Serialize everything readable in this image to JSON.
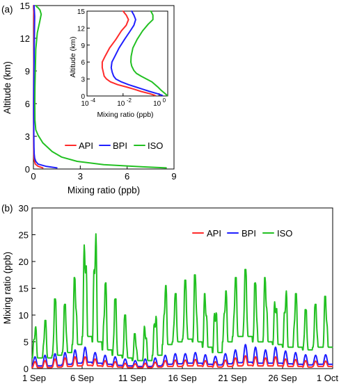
{
  "colors": {
    "API": "#ff2a2a",
    "BPI": "#1f1fff",
    "ISO": "#22c022"
  },
  "chart_data": [
    {
      "id": "profile",
      "panel_label": "(a)",
      "type": "line",
      "xlabel": "Mixing ratio (ppb)",
      "ylabel": "Altitude (km)",
      "xlim": [
        0,
        9
      ],
      "ylim": [
        0,
        15
      ],
      "xticks": [
        0,
        3,
        6,
        9
      ],
      "yticks": [
        0,
        3,
        6,
        9,
        12,
        15
      ],
      "legend": "bottom-right",
      "series": [
        {
          "name": "API",
          "x": [
            0.6,
            0.3,
            0.12,
            0.07,
            0.04,
            0.025,
            0.018,
            0.014,
            0.012,
            0.01,
            0.01,
            0.012,
            0.02,
            0.03,
            0.035,
            0.03,
            0.02,
            0.01
          ],
          "y": [
            0.1,
            0.25,
            0.45,
            0.7,
            1.0,
            1.4,
            2.0,
            3.0,
            4.0,
            5.0,
            6.0,
            7.5,
            9.0,
            11.0,
            13.0,
            14.0,
            14.6,
            15.0
          ]
        },
        {
          "name": "BPI",
          "x": [
            1.5,
            0.8,
            0.3,
            0.15,
            0.08,
            0.05,
            0.035,
            0.028,
            0.024,
            0.02,
            0.02,
            0.024,
            0.035,
            0.05,
            0.07,
            0.08,
            0.06,
            0.04
          ],
          "y": [
            0.1,
            0.25,
            0.45,
            0.7,
            1.0,
            1.4,
            2.0,
            3.0,
            4.0,
            5.0,
            6.0,
            7.5,
            9.0,
            11.0,
            13.0,
            14.0,
            14.6,
            15.0
          ]
        },
        {
          "name": "ISO",
          "x": [
            8.5,
            7.0,
            4.5,
            2.8,
            1.8,
            1.2,
            0.6,
            0.3,
            0.15,
            0.1,
            0.09,
            0.1,
            0.12,
            0.15,
            0.25,
            0.4,
            0.5,
            0.42,
            0.3,
            0.2,
            0.18
          ],
          "y": [
            0.1,
            0.2,
            0.4,
            0.7,
            1.1,
            1.6,
            2.4,
            3.1,
            3.6,
            4.5,
            6.0,
            7.5,
            9.0,
            11.0,
            12.5,
            13.5,
            14.2,
            14.6,
            14.8,
            14.9,
            15.0
          ]
        }
      ]
    },
    {
      "id": "inset",
      "type": "line",
      "xscale": "log",
      "xlabel": "Mixing ratio (ppb)",
      "ylabel": "Altitude (km)",
      "xlim": [
        0.0001,
        3
      ],
      "ylim": [
        0,
        15
      ],
      "xticks": [
        0.0001,
        0.01,
        1
      ],
      "xtick_labels": [
        {
          "base": "10",
          "exp": "-4"
        },
        {
          "base": "10",
          "exp": "-2"
        },
        {
          "base": "10",
          "exp": "0"
        }
      ],
      "yticks": [
        0,
        3,
        6,
        9,
        12,
        15
      ],
      "series": [
        {
          "name": "API",
          "x": [
            0.6,
            0.3,
            0.1,
            0.04,
            0.015,
            0.005,
            0.002,
            0.0012,
            0.0009,
            0.0008,
            0.0007,
            0.0007,
            0.001,
            0.0018,
            0.004,
            0.008,
            0.015,
            0.02,
            0.015,
            0.01
          ],
          "y": [
            0.1,
            0.4,
            0.8,
            1.2,
            1.6,
            2.0,
            2.5,
            3.0,
            3.5,
            4.2,
            5.0,
            6.0,
            7.0,
            8.5,
            10.0,
            11.5,
            12.5,
            13.5,
            14.3,
            15.0
          ]
        },
        {
          "name": "BPI",
          "x": [
            1.5,
            0.8,
            0.3,
            0.12,
            0.05,
            0.02,
            0.008,
            0.004,
            0.003,
            0.0025,
            0.0022,
            0.0024,
            0.0035,
            0.006,
            0.012,
            0.025,
            0.04,
            0.05,
            0.04,
            0.03
          ],
          "y": [
            0.1,
            0.4,
            0.8,
            1.2,
            1.6,
            2.0,
            2.5,
            3.0,
            3.5,
            4.2,
            5.0,
            6.0,
            7.0,
            8.5,
            10.0,
            11.5,
            12.5,
            13.5,
            14.3,
            15.0
          ]
        },
        {
          "name": "ISO",
          "x": [
            2.8,
            2.0,
            1.3,
            0.9,
            0.6,
            0.4,
            0.2,
            0.1,
            0.055,
            0.04,
            0.03,
            0.027,
            0.028,
            0.035,
            0.06,
            0.12,
            0.25,
            0.45,
            0.45,
            0.35
          ],
          "y": [
            0.1,
            0.5,
            1.0,
            1.5,
            2.0,
            2.5,
            3.0,
            3.5,
            4.0,
            4.5,
            5.3,
            6.0,
            7.0,
            8.5,
            10.0,
            11.5,
            12.7,
            13.5,
            14.3,
            15.0
          ]
        }
      ]
    },
    {
      "id": "timeseries",
      "panel_label": "(b)",
      "type": "line",
      "xlabel": "",
      "ylabel": "Mixing ratio (ppb)",
      "xlim": [
        1,
        31
      ],
      "ylim": [
        0,
        30
      ],
      "x_unit": "day of September (31 = 1 Oct)",
      "xticks": [
        1,
        6,
        11,
        16,
        21,
        26,
        31
      ],
      "xtick_labels": [
        "1 Sep",
        "6 Sep",
        "11 Sep",
        "16 Sep",
        "21 Sep",
        "26 Sep",
        "1 Oct"
      ],
      "yticks": [
        0,
        5,
        10,
        15,
        20,
        25,
        30
      ],
      "legend": "top-right",
      "daily": {
        "day": [
          1,
          2,
          3,
          4,
          5,
          6,
          7,
          8,
          9,
          10,
          11,
          12,
          13,
          14,
          15,
          16,
          17,
          18,
          19,
          20,
          21,
          22,
          23,
          24,
          25,
          26,
          27,
          28,
          29,
          30
        ],
        "ISO": {
          "peak": [
            7.8,
            9.0,
            13.0,
            12.0,
            17.0,
            24.5,
            25.5,
            16.0,
            13.0,
            10.0,
            6.5,
            8.0,
            10.5,
            15.5,
            14.0,
            16.5,
            17.5,
            14.0,
            12.0,
            14.5,
            17.0,
            18.5,
            16.0,
            17.0,
            13.5,
            14.5,
            14.0,
            11.0,
            12.0,
            13.5
          ],
          "base": [
            2.0,
            2.0,
            2.5,
            3.0,
            4.5,
            6.0,
            5.0,
            3.5,
            2.5,
            2.0,
            1.5,
            1.5,
            2.5,
            4.5,
            5.0,
            5.5,
            5.0,
            4.0,
            3.0,
            5.0,
            6.0,
            6.0,
            5.0,
            5.0,
            4.5,
            4.0,
            4.0,
            3.5,
            4.0,
            4.0
          ]
        },
        "BPI": {
          "peak": [
            2.2,
            2.5,
            2.8,
            3.0,
            3.5,
            4.0,
            3.0,
            2.5,
            2.2,
            1.8,
            1.5,
            1.8,
            2.0,
            2.5,
            2.8,
            2.8,
            3.0,
            2.6,
            2.3,
            2.8,
            3.5,
            4.5,
            4.0,
            3.5,
            4.0,
            3.3,
            3.0,
            2.6,
            2.5,
            2.6
          ],
          "base": [
            0.5,
            0.5,
            0.6,
            0.8,
            1.0,
            1.2,
            1.0,
            0.8,
            0.6,
            0.5,
            0.4,
            0.4,
            0.5,
            0.8,
            0.9,
            1.0,
            1.0,
            0.8,
            0.7,
            0.9,
            1.1,
            1.2,
            1.0,
            1.0,
            1.0,
            0.9,
            0.8,
            0.7,
            0.8,
            0.8
          ]
        },
        "API": {
          "peak": [
            1.3,
            1.5,
            1.8,
            2.0,
            2.2,
            2.2,
            1.8,
            1.5,
            1.3,
            1.0,
            0.9,
            1.0,
            1.2,
            1.5,
            1.6,
            1.6,
            1.7,
            1.5,
            1.3,
            1.6,
            2.0,
            2.4,
            2.2,
            2.0,
            2.2,
            1.8,
            1.7,
            1.5,
            1.4,
            1.4
          ],
          "base": [
            0.2,
            0.2,
            0.3,
            0.4,
            0.5,
            0.6,
            0.5,
            0.4,
            0.3,
            0.2,
            0.2,
            0.2,
            0.3,
            0.4,
            0.4,
            0.5,
            0.5,
            0.4,
            0.3,
            0.4,
            0.5,
            0.6,
            0.5,
            0.5,
            0.5,
            0.4,
            0.4,
            0.3,
            0.4,
            0.4
          ]
        }
      }
    }
  ]
}
